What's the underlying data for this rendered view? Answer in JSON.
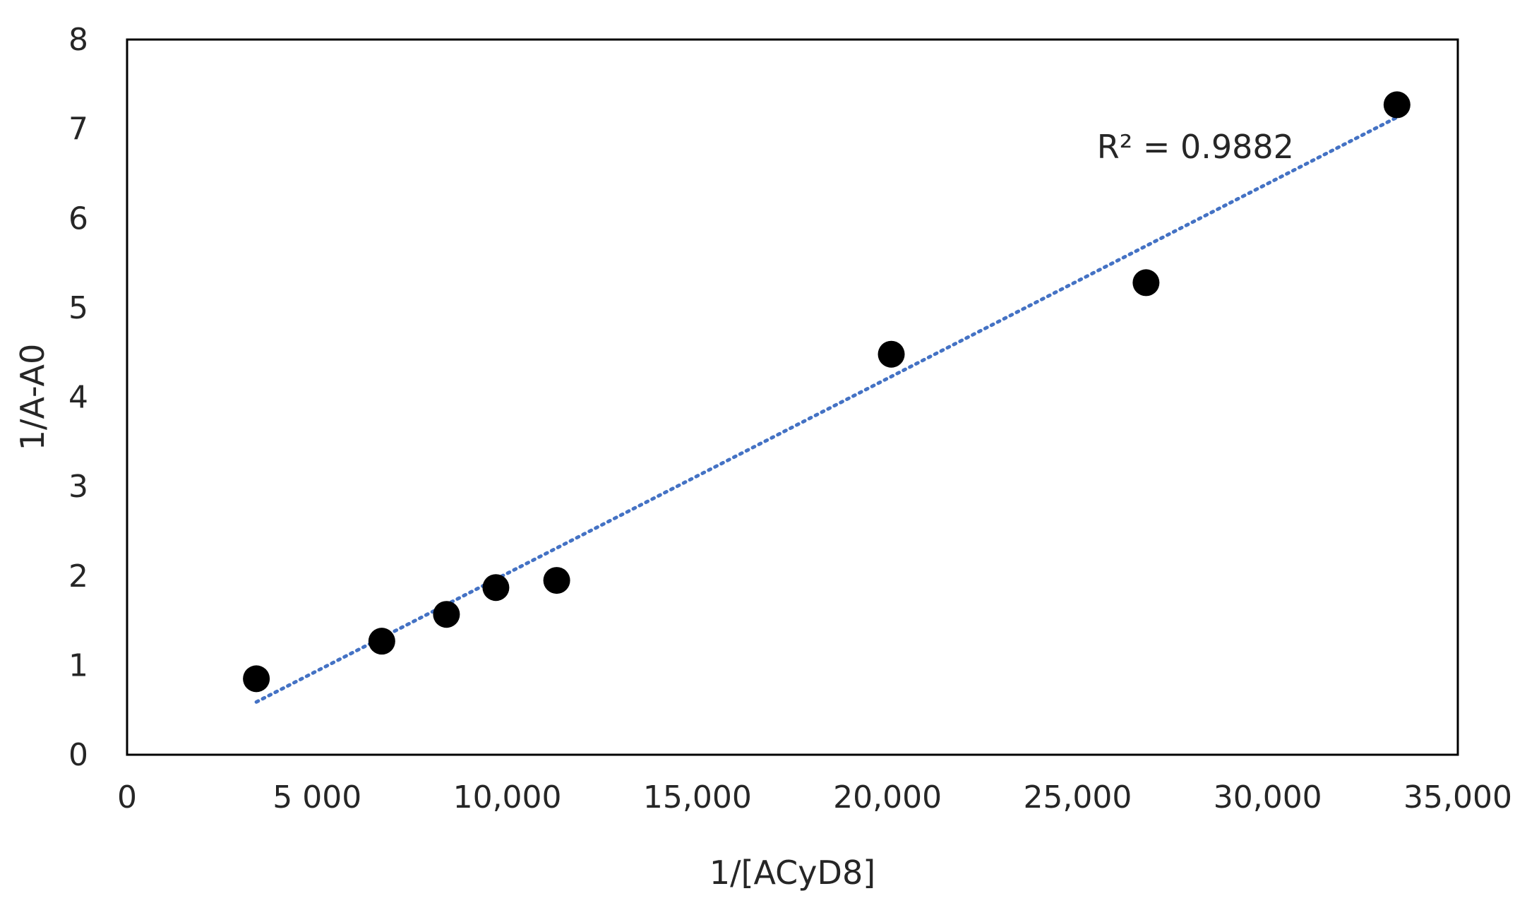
{
  "chart_data": {
    "type": "scatter",
    "xlabel": "1/[ACyD8]",
    "ylabel": "1/A-A0",
    "xlim": [
      0,
      35000
    ],
    "ylim": [
      0,
      8
    ],
    "x_ticks": [
      0,
      5000,
      10000,
      15000,
      20000,
      25000,
      30000,
      35000
    ],
    "x_tick_labels": [
      "0",
      "5 000",
      "10,000",
      "15,000",
      "20,000",
      "25,000",
      "30,000",
      "35,000"
    ],
    "y_ticks": [
      0,
      1,
      2,
      3,
      4,
      5,
      6,
      7,
      8
    ],
    "y_tick_labels": [
      "0",
      "1",
      "2",
      "3",
      "4",
      "5",
      "6",
      "7",
      "8"
    ],
    "grid": false,
    "legend": "none",
    "series": [
      {
        "x": [
          3400,
          6700,
          8400,
          9700,
          11300,
          20100,
          26800,
          33400
        ],
        "y": [
          0.85,
          1.27,
          1.57,
          1.87,
          1.95,
          4.48,
          5.28,
          7.27
        ],
        "marker": "circle",
        "color": "#000000"
      }
    ],
    "trendline": {
      "type": "linear",
      "style": "dotted",
      "color": "#4472c4",
      "x": [
        3400,
        33400
      ],
      "y": [
        0.59,
        7.13
      ]
    },
    "annotations": [
      {
        "text": "R² = 0.9882",
        "x": 28100,
        "y": 6.8
      }
    ]
  }
}
